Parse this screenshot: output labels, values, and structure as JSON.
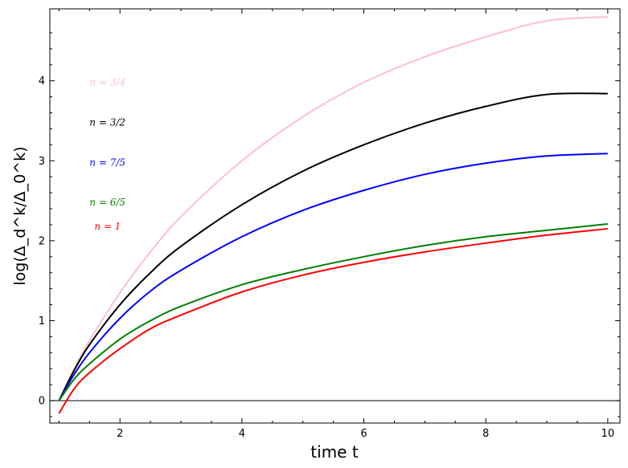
{
  "chart_data": {
    "type": "line",
    "title": "",
    "xlabel": "time t",
    "ylabel": "log(Δ_d^k/Δ_0^k)",
    "xlim": [
      0.85,
      10.2
    ],
    "ylim": [
      -0.28,
      4.9
    ],
    "x_ticks": [
      2,
      4,
      6,
      8,
      10
    ],
    "y_ticks": [
      0,
      1,
      2,
      3,
      4
    ],
    "grid": false,
    "zero_line": true,
    "series": [
      {
        "name": "n=3/4",
        "color": "#ffc0cb",
        "x": [
          1.0,
          1.25,
          1.5,
          2.0,
          2.5,
          3.0,
          4.0,
          5.0,
          6.0,
          7.0,
          8.0,
          9.0,
          10.0
        ],
        "y": [
          0.0,
          0.4,
          0.75,
          1.35,
          1.86,
          2.3,
          3.0,
          3.55,
          3.98,
          4.3,
          4.55,
          4.75,
          4.8
        ]
      },
      {
        "name": "n=3/2",
        "color": "#000000",
        "x": [
          1.0,
          1.25,
          1.5,
          2.0,
          2.5,
          3.0,
          4.0,
          5.0,
          6.0,
          7.0,
          8.0,
          9.0,
          10.0
        ],
        "y": [
          0.0,
          0.38,
          0.7,
          1.2,
          1.6,
          1.93,
          2.45,
          2.87,
          3.2,
          3.47,
          3.68,
          3.83,
          3.84
        ]
      },
      {
        "name": "n=7/5",
        "color": "#0000ff",
        "x": [
          1.0,
          1.25,
          1.5,
          2.0,
          2.5,
          3.0,
          4.0,
          5.0,
          6.0,
          7.0,
          8.0,
          9.0,
          10.0
        ],
        "y": [
          0.0,
          0.33,
          0.6,
          1.03,
          1.37,
          1.63,
          2.05,
          2.38,
          2.63,
          2.83,
          2.97,
          3.06,
          3.09
        ]
      },
      {
        "name": "n=6/5",
        "color": "#008000",
        "x": [
          1.0,
          1.25,
          1.5,
          2.0,
          2.5,
          3.0,
          4.0,
          5.0,
          6.0,
          7.0,
          8.0,
          9.0,
          10.0
        ],
        "y": [
          0.0,
          0.27,
          0.46,
          0.77,
          1.0,
          1.18,
          1.45,
          1.64,
          1.8,
          1.94,
          2.05,
          2.13,
          2.21
        ]
      },
      {
        "name": "n=1",
        "color": "#ff0000",
        "x": [
          1.0,
          1.25,
          1.5,
          2.0,
          2.5,
          3.0,
          4.0,
          5.0,
          6.0,
          7.0,
          8.0,
          9.0,
          10.0
        ],
        "y": [
          -0.16,
          0.15,
          0.35,
          0.65,
          0.9,
          1.07,
          1.36,
          1.57,
          1.73,
          1.86,
          1.97,
          2.07,
          2.15
        ]
      }
    ],
    "annotations": [
      {
        "text": "n = 3/4",
        "color": "#ffc0cb",
        "x": 1.5,
        "y": 3.98
      },
      {
        "text": "n = 3/2",
        "color": "#000000",
        "x": 1.5,
        "y": 3.48
      },
      {
        "text": "n = 7/5",
        "color": "#0000ff",
        "x": 1.5,
        "y": 2.98
      },
      {
        "text": "n = 6/5",
        "color": "#008000",
        "x": 1.5,
        "y": 2.48
      },
      {
        "text": "n = 1",
        "color": "#ff0000",
        "x": 1.58,
        "y": 2.18
      }
    ]
  }
}
